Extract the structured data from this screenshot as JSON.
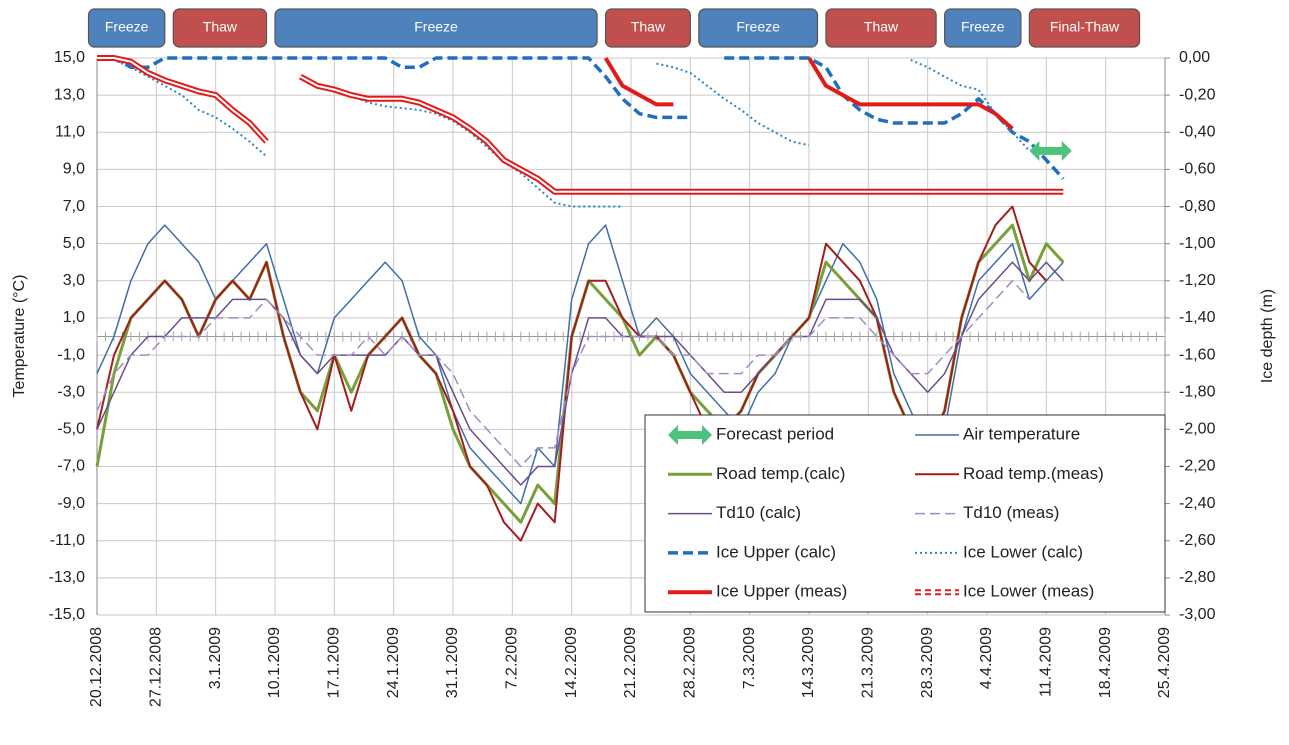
{
  "chart_data": {
    "type": "line",
    "y_label": "Temperature (°C)",
    "y2_label": "Ice depth (m)",
    "xlim": [
      "20.12.2008",
      "25.4.2009"
    ],
    "xticks": [
      "20.12.2008",
      "27.12.2008",
      "3.1.2009",
      "10.1.2009",
      "17.1.2009",
      "24.1.2009",
      "31.1.2009",
      "7.2.2009",
      "14.2.2009",
      "21.2.2009",
      "28.2.2009",
      "7.3.2009",
      "14.3.2009",
      "21.3.2009",
      "28.3.2009",
      "4.4.2009",
      "11.4.2009",
      "18.4.2009",
      "25.4.2009"
    ],
    "ylim": [
      -15,
      15
    ],
    "yticks": [
      {
        "value": 15,
        "label": "15,0"
      },
      {
        "value": 13,
        "label": "13,0"
      },
      {
        "value": 11,
        "label": "11,0"
      },
      {
        "value": 9,
        "label": "9,0"
      },
      {
        "value": 7,
        "label": "7,0"
      },
      {
        "value": 5,
        "label": "5,0"
      },
      {
        "value": 3,
        "label": "3,0"
      },
      {
        "value": 1,
        "label": "1,0"
      },
      {
        "value": -1,
        "label": "-1,0"
      },
      {
        "value": -3,
        "label": "-3,0"
      },
      {
        "value": -5,
        "label": "-5,0"
      },
      {
        "value": -7,
        "label": "-7,0"
      },
      {
        "value": -9,
        "label": "-9,0"
      },
      {
        "value": -11,
        "label": "-11,0"
      },
      {
        "value": -13,
        "label": "-13,0"
      },
      {
        "value": -15,
        "label": "-15,0"
      }
    ],
    "y2lim": [
      -3,
      0
    ],
    "y2ticks": [
      {
        "value": 0,
        "label": "0,00"
      },
      {
        "value": -0.2,
        "label": "-0,20"
      },
      {
        "value": -0.4,
        "label": "-0,40"
      },
      {
        "value": -0.6,
        "label": "-0,60"
      },
      {
        "value": -0.8,
        "label": "-0,80"
      },
      {
        "value": -1,
        "label": "-1,00"
      },
      {
        "value": -1.2,
        "label": "-1,20"
      },
      {
        "value": -1.4,
        "label": "-1,40"
      },
      {
        "value": -1.6,
        "label": "-1,60"
      },
      {
        "value": -1.8,
        "label": "-1,80"
      },
      {
        "value": -2,
        "label": "-2,00"
      },
      {
        "value": -2.2,
        "label": "-2,20"
      },
      {
        "value": -2.4,
        "label": "-2,40"
      },
      {
        "value": -2.6,
        "label": "-2,60"
      },
      {
        "value": -2.8,
        "label": "-2,80"
      },
      {
        "value": -3,
        "label": "-3,00"
      }
    ],
    "grid": true,
    "phases": [
      {
        "label": "Freeze",
        "start": "19.12.2008",
        "end": "28.12.2008",
        "color": "#4f81bd"
      },
      {
        "label": "Thaw",
        "start": "29.12.2008",
        "end": "9.1.2009",
        "color": "#c0504d"
      },
      {
        "label": "Freeze",
        "start": "10.1.2009",
        "end": "17.2.2009",
        "color": "#4f81bd"
      },
      {
        "label": "Thaw",
        "start": "18.2.2009",
        "end": "28.2.2009",
        "color": "#c0504d"
      },
      {
        "label": "Freeze",
        "start": "1.3.2009",
        "end": "15.3.2009",
        "color": "#4f81bd"
      },
      {
        "label": "Thaw",
        "start": "16.3.2009",
        "end": "29.3.2009",
        "color": "#c0504d"
      },
      {
        "label": "Freeze",
        "start": "30.3.2009",
        "end": "8.4.2009",
        "color": "#4f81bd"
      },
      {
        "label": "Final-Thaw",
        "start": "9.4.2009",
        "end": "22.4.2009",
        "color": "#c0504d"
      }
    ],
    "forecast": {
      "name": "Forecast period",
      "start": "9.4.2009",
      "end": "14.4.2009",
      "y2": -0.5,
      "color": "#4ec27d"
    },
    "x": [
      "20.12.2008",
      "22.12.2008",
      "24.12.2008",
      "26.12.2008",
      "28.12.2008",
      "30.12.2008",
      "1.1.2009",
      "3.1.2009",
      "5.1.2009",
      "7.1.2009",
      "9.1.2009",
      "11.1.2009",
      "13.1.2009",
      "15.1.2009",
      "17.1.2009",
      "19.1.2009",
      "21.1.2009",
      "23.1.2009",
      "25.1.2009",
      "27.1.2009",
      "29.1.2009",
      "31.1.2009",
      "2.2.2009",
      "4.2.2009",
      "6.2.2009",
      "8.2.2009",
      "10.2.2009",
      "12.2.2009",
      "14.2.2009",
      "16.2.2009",
      "18.2.2009",
      "20.2.2009",
      "22.2.2009",
      "24.2.2009",
      "26.2.2009",
      "28.2.2009",
      "2.3.2009",
      "4.3.2009",
      "6.3.2009",
      "8.3.2009",
      "10.3.2009",
      "12.3.2009",
      "14.3.2009",
      "16.3.2009",
      "18.3.2009",
      "20.3.2009",
      "22.3.2009",
      "24.3.2009",
      "26.3.2009",
      "28.3.2009",
      "30.3.2009",
      "1.4.2009",
      "3.4.2009",
      "5.4.2009",
      "7.4.2009",
      "9.4.2009",
      "11.4.2009",
      "13.4.2009"
    ],
    "series": [
      {
        "name": "Air temperature",
        "color": "#3f6ea8",
        "width": 1.5,
        "style": "solid",
        "values": [
          -2,
          0,
          3,
          5,
          6,
          5,
          4,
          2,
          3,
          4,
          5,
          2,
          -1,
          -2,
          1,
          2,
          3,
          4,
          3,
          0,
          -1,
          -4,
          -6,
          -7,
          -8,
          -9,
          -6,
          -7,
          2,
          5,
          6,
          3,
          0,
          1,
          0,
          -2,
          -3,
          -4,
          -5,
          -3,
          -2,
          0,
          1,
          3,
          5,
          4,
          2,
          -2,
          -4,
          -6,
          -5,
          0,
          3,
          4,
          5,
          2,
          3,
          4
        ]
      },
      {
        "name": "Road temp.(calc)",
        "color": "#77a03b",
        "width": 3,
        "style": "solid",
        "values": [
          -7,
          -2,
          1,
          2,
          3,
          2,
          0,
          2,
          3,
          2,
          4,
          0,
          -3,
          -4,
          -1,
          -3,
          -1,
          0,
          1,
          -1,
          -2,
          -5,
          -7,
          -8,
          -9,
          -10,
          -8,
          -9,
          0,
          3,
          2,
          1,
          -1,
          0,
          -1,
          -3,
          -4,
          -5,
          -4,
          -2,
          -1,
          0,
          1,
          4,
          3,
          2,
          1,
          -3,
          -5,
          -6,
          -4,
          1,
          4,
          5,
          6,
          3,
          5,
          4
        ]
      },
      {
        "name": "Road temp.(meas)",
        "color": "#a31d1d",
        "width": 2,
        "style": "solid",
        "values": [
          -5,
          -1,
          1,
          2,
          3,
          2,
          0,
          2,
          3,
          2,
          4,
          0,
          -3,
          -5,
          -1,
          -4,
          -1,
          0,
          1,
          -1,
          -2,
          -4,
          -7,
          -8,
          -10,
          -11,
          -9,
          -10,
          0,
          3,
          3,
          1,
          0,
          0,
          -1,
          -3,
          -5,
          -5,
          -4,
          -2,
          -1,
          0,
          1,
          5,
          4,
          3,
          1,
          -3,
          -5,
          -6,
          -4,
          1,
          4,
          6,
          7,
          4,
          3,
          null
        ]
      },
      {
        "name": "Td10 (calc)",
        "color": "#6b4c8a",
        "width": 1.5,
        "style": "solid",
        "values": [
          -5,
          -3,
          -1,
          0,
          0,
          1,
          1,
          1,
          2,
          2,
          2,
          1,
          -1,
          -2,
          -1,
          -1,
          -1,
          -1,
          0,
          -1,
          -1,
          -3,
          -5,
          -6,
          -7,
          -8,
          -7,
          -7,
          -2,
          1,
          1,
          0,
          0,
          0,
          0,
          -1,
          -2,
          -3,
          -3,
          -2,
          -1,
          0,
          0,
          2,
          2,
          2,
          1,
          -1,
          -2,
          -3,
          -2,
          0,
          2,
          3,
          4,
          3,
          4,
          3
        ]
      },
      {
        "name": "Td10 (meas)",
        "color": "#a08cc4",
        "width": 1.5,
        "style": "dashed",
        "values": [
          -4,
          -2,
          -1,
          -1,
          0,
          0,
          0,
          1,
          1,
          1,
          2,
          1,
          0,
          -1,
          -1,
          -1,
          0,
          -1,
          0,
          -1,
          -1,
          -2,
          -4,
          -5,
          -6,
          -7,
          -6,
          -6,
          -2,
          0,
          0,
          0,
          0,
          0,
          -1,
          -1,
          -2,
          -2,
          -2,
          -1,
          -1,
          0,
          0,
          1,
          1,
          1,
          0,
          -1,
          -2,
          -2,
          -1,
          0,
          1,
          2,
          3,
          2,
          null,
          null
        ]
      },
      {
        "name": "Ice Upper (calc)",
        "color": "#1f6fc1",
        "width": 3.5,
        "style": "dashed",
        "axis": "y2",
        "values": [
          0,
          0,
          -0.05,
          -0.05,
          0,
          0,
          0,
          0,
          0,
          0,
          0,
          0,
          0,
          0,
          0,
          0,
          0,
          0,
          -0.05,
          -0.05,
          0,
          0,
          0,
          0,
          0,
          0,
          0,
          0,
          0,
          0,
          -0.1,
          -0.22,
          -0.3,
          -0.32,
          -0.32,
          -0.32,
          null,
          0,
          0,
          0,
          0,
          0,
          0,
          -0.05,
          -0.2,
          -0.28,
          -0.33,
          -0.35,
          -0.35,
          -0.35,
          -0.35,
          -0.3,
          -0.22,
          -0.3,
          -0.4,
          -0.45,
          -0.55,
          -0.65
        ]
      },
      {
        "name": "Ice Lower (calc)",
        "color": "#2a86c9",
        "width": 2,
        "style": "dotted",
        "axis": "y2",
        "values": [
          0,
          -0.01,
          -0.05,
          -0.1,
          -0.15,
          -0.2,
          -0.28,
          -0.32,
          -0.38,
          -0.45,
          -0.53,
          null,
          -0.1,
          -0.15,
          -0.17,
          -0.2,
          -0.24,
          -0.26,
          -0.27,
          -0.28,
          -0.3,
          -0.34,
          -0.4,
          -0.48,
          -0.56,
          -0.62,
          -0.7,
          -0.78,
          -0.8,
          -0.8,
          -0.8,
          -0.8,
          null,
          -0.03,
          -0.05,
          -0.08,
          -0.15,
          -0.22,
          -0.28,
          -0.35,
          -0.4,
          -0.45,
          -0.47,
          null,
          null,
          null,
          null,
          null,
          -0.01,
          -0.05,
          -0.1,
          -0.15,
          -0.17,
          -0.3,
          -0.4,
          -0.5,
          null,
          null
        ]
      },
      {
        "name": "Ice Upper (meas)",
        "color": "#e31a1a",
        "width": 4,
        "style": "solid",
        "axis": "y2",
        "values": [
          null,
          null,
          null,
          null,
          null,
          null,
          null,
          null,
          null,
          null,
          null,
          null,
          null,
          null,
          null,
          null,
          null,
          null,
          null,
          null,
          null,
          null,
          null,
          null,
          null,
          null,
          null,
          null,
          null,
          null,
          0,
          -0.15,
          -0.2,
          -0.25,
          -0.25,
          null,
          null,
          null,
          null,
          null,
          null,
          null,
          0,
          -0.15,
          -0.2,
          -0.25,
          -0.25,
          -0.25,
          -0.25,
          -0.25,
          -0.25,
          -0.25,
          -0.25,
          -0.3,
          -0.38,
          null,
          null,
          null
        ]
      },
      {
        "name": "Ice Lower (meas)",
        "color": "#e31a1a",
        "width": 6,
        "style": "double",
        "axis": "y2",
        "values": [
          0,
          0,
          -0.02,
          -0.08,
          -0.12,
          -0.15,
          -0.18,
          -0.2,
          -0.28,
          -0.35,
          -0.45,
          null,
          -0.1,
          -0.15,
          -0.17,
          -0.2,
          -0.22,
          -0.22,
          -0.22,
          -0.24,
          -0.28,
          -0.32,
          -0.38,
          -0.45,
          -0.55,
          -0.6,
          -0.65,
          -0.72,
          -0.72,
          -0.72,
          -0.72,
          -0.72,
          -0.72,
          -0.72,
          -0.72,
          -0.72,
          -0.72,
          -0.72,
          -0.72,
          -0.72,
          -0.72,
          -0.72,
          -0.72,
          -0.72,
          -0.72,
          -0.72,
          -0.72,
          -0.72,
          -0.72,
          -0.72,
          -0.72,
          -0.72,
          -0.72,
          -0.72,
          -0.72,
          -0.72,
          -0.72,
          -0.72
        ]
      }
    ]
  }
}
